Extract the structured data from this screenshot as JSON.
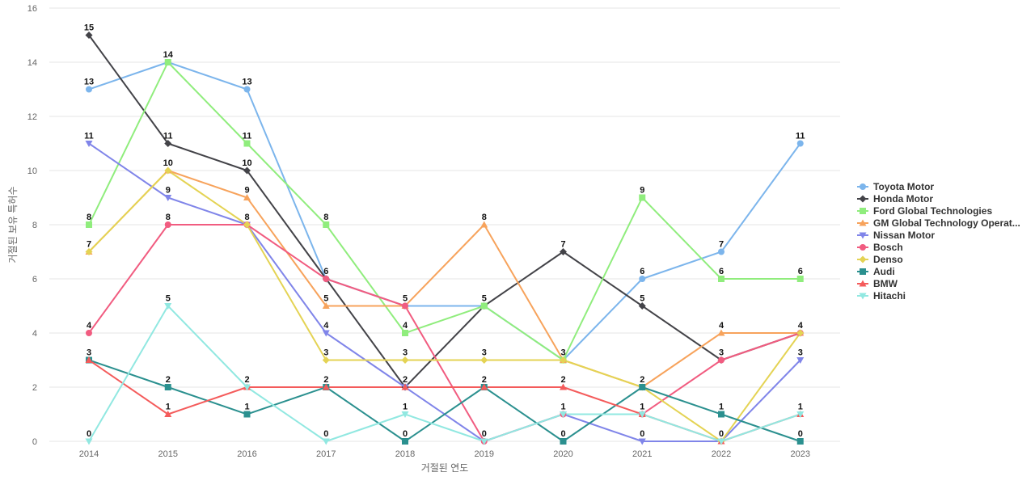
{
  "chart_data": {
    "type": "line",
    "title": "",
    "xlabel": "거절된 연도",
    "ylabel": "거절된 보유 특허수",
    "categories": [
      "2014",
      "2015",
      "2016",
      "2017",
      "2018",
      "2019",
      "2020",
      "2021",
      "2022",
      "2023"
    ],
    "yticks": [
      "0",
      "2",
      "4",
      "6",
      "8",
      "10",
      "12",
      "14",
      "16"
    ],
    "ylim": [
      0,
      16
    ],
    "grid": true,
    "legend_position": "right",
    "series": [
      {
        "name": "Toyota Motor",
        "color": "#7cb5ec",
        "marker": "circle",
        "values": [
          13,
          14,
          13,
          6,
          5,
          5,
          3,
          6,
          7,
          11
        ]
      },
      {
        "name": "Honda Motor",
        "color": "#434348",
        "marker": "diamond",
        "values": [
          15,
          11,
          10,
          6,
          2,
          5,
          7,
          5,
          3,
          4
        ]
      },
      {
        "name": "Ford Global Technologies",
        "color": "#90ed7d",
        "marker": "square",
        "values": [
          8,
          14,
          11,
          8,
          4,
          5,
          3,
          9,
          6,
          6
        ]
      },
      {
        "name": "GM Global Technology Operat...",
        "color": "#f7a35c",
        "marker": "triangle",
        "values": [
          7,
          10,
          9,
          5,
          5,
          8,
          3,
          2,
          4,
          4
        ]
      },
      {
        "name": "Nissan Motor",
        "color": "#8085e9",
        "marker": "triangle-down",
        "values": [
          11,
          9,
          8,
          4,
          2,
          0,
          1,
          0,
          0,
          3
        ]
      },
      {
        "name": "Bosch",
        "color": "#f15c80",
        "marker": "circle",
        "values": [
          4,
          8,
          8,
          6,
          5,
          0,
          1,
          1,
          3,
          4
        ]
      },
      {
        "name": "Denso",
        "color": "#e4d354",
        "marker": "diamond",
        "values": [
          7,
          10,
          8,
          3,
          3,
          3,
          3,
          2,
          0,
          4
        ]
      },
      {
        "name": "Audi",
        "color": "#2b908f",
        "marker": "square",
        "values": [
          3,
          2,
          1,
          2,
          0,
          2,
          0,
          2,
          1,
          0
        ]
      },
      {
        "name": "BMW",
        "color": "#f45b5b",
        "marker": "triangle",
        "values": [
          3,
          1,
          2,
          2,
          2,
          2,
          2,
          1,
          0,
          1
        ]
      },
      {
        "name": "Hitachi",
        "color": "#91e8e1",
        "marker": "triangle-down",
        "values": [
          0,
          5,
          2,
          0,
          1,
          0,
          1,
          1,
          0,
          1
        ]
      }
    ],
    "labels": [
      {
        "x": "2014",
        "y": 15,
        "text": "15"
      },
      {
        "x": "2014",
        "y": 13,
        "text": "13"
      },
      {
        "x": "2014",
        "y": 11,
        "text": "11"
      },
      {
        "x": "2014",
        "y": 8,
        "text": "8"
      },
      {
        "x": "2014",
        "y": 7,
        "text": "7"
      },
      {
        "x": "2014",
        "y": 4,
        "text": "4"
      },
      {
        "x": "2014",
        "y": 3,
        "text": "3"
      },
      {
        "x": "2014",
        "y": 0,
        "text": "0"
      },
      {
        "x": "2015",
        "y": 14,
        "text": "14"
      },
      {
        "x": "2015",
        "y": 11,
        "text": "11"
      },
      {
        "x": "2015",
        "y": 10,
        "text": "10"
      },
      {
        "x": "2015",
        "y": 9,
        "text": "9"
      },
      {
        "x": "2015",
        "y": 8,
        "text": "8"
      },
      {
        "x": "2015",
        "y": 5,
        "text": "5"
      },
      {
        "x": "2015",
        "y": 2,
        "text": "2"
      },
      {
        "x": "2015",
        "y": 1,
        "text": "1"
      },
      {
        "x": "2016",
        "y": 13,
        "text": "13"
      },
      {
        "x": "2016",
        "y": 11,
        "text": "11"
      },
      {
        "x": "2016",
        "y": 10,
        "text": "10"
      },
      {
        "x": "2016",
        "y": 9,
        "text": "9"
      },
      {
        "x": "2016",
        "y": 8,
        "text": "8"
      },
      {
        "x": "2016",
        "y": 2,
        "text": "2"
      },
      {
        "x": "2016",
        "y": 1,
        "text": "1"
      },
      {
        "x": "2017",
        "y": 8,
        "text": "8"
      },
      {
        "x": "2017",
        "y": 6,
        "text": "6"
      },
      {
        "x": "2017",
        "y": 5,
        "text": "5"
      },
      {
        "x": "2017",
        "y": 4,
        "text": "4"
      },
      {
        "x": "2017",
        "y": 3,
        "text": "3"
      },
      {
        "x": "2017",
        "y": 2,
        "text": "2"
      },
      {
        "x": "2017",
        "y": 0,
        "text": "0"
      },
      {
        "x": "2018",
        "y": 5,
        "text": "5"
      },
      {
        "x": "2018",
        "y": 4,
        "text": "4"
      },
      {
        "x": "2018",
        "y": 3,
        "text": "3"
      },
      {
        "x": "2018",
        "y": 2,
        "text": "2"
      },
      {
        "x": "2018",
        "y": 1,
        "text": "1"
      },
      {
        "x": "2018",
        "y": 0,
        "text": "0"
      },
      {
        "x": "2019",
        "y": 8,
        "text": "8"
      },
      {
        "x": "2019",
        "y": 5,
        "text": "5"
      },
      {
        "x": "2019",
        "y": 3,
        "text": "3"
      },
      {
        "x": "2019",
        "y": 2,
        "text": "2"
      },
      {
        "x": "2019",
        "y": 0,
        "text": "0"
      },
      {
        "x": "2020",
        "y": 7,
        "text": "7"
      },
      {
        "x": "2020",
        "y": 3,
        "text": "3"
      },
      {
        "x": "2020",
        "y": 2,
        "text": "2"
      },
      {
        "x": "2020",
        "y": 1,
        "text": "1"
      },
      {
        "x": "2020",
        "y": 0,
        "text": "0"
      },
      {
        "x": "2021",
        "y": 9,
        "text": "9"
      },
      {
        "x": "2021",
        "y": 6,
        "text": "6"
      },
      {
        "x": "2021",
        "y": 5,
        "text": "5"
      },
      {
        "x": "2021",
        "y": 2,
        "text": "2"
      },
      {
        "x": "2021",
        "y": 1,
        "text": "1"
      },
      {
        "x": "2021",
        "y": 0,
        "text": "0"
      },
      {
        "x": "2022",
        "y": 7,
        "text": "7"
      },
      {
        "x": "2022",
        "y": 6,
        "text": "6"
      },
      {
        "x": "2022",
        "y": 4,
        "text": "4"
      },
      {
        "x": "2022",
        "y": 3,
        "text": "3"
      },
      {
        "x": "2022",
        "y": 1,
        "text": "1"
      },
      {
        "x": "2022",
        "y": 0,
        "text": "0"
      },
      {
        "x": "2023",
        "y": 11,
        "text": "11"
      },
      {
        "x": "2023",
        "y": 6,
        "text": "6"
      },
      {
        "x": "2023",
        "y": 4,
        "text": "4"
      },
      {
        "x": "2023",
        "y": 3,
        "text": "3"
      },
      {
        "x": "2023",
        "y": 1,
        "text": "1"
      },
      {
        "x": "2023",
        "y": 0,
        "text": "0"
      }
    ]
  }
}
